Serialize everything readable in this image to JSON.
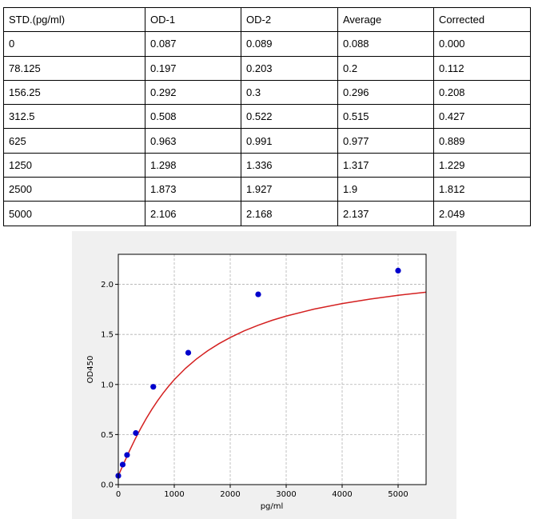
{
  "table": {
    "headers": [
      "STD.(pg/ml)",
      "OD-1",
      "OD-2",
      "Average",
      "Corrected"
    ],
    "rows": [
      [
        "0",
        "0.087",
        "0.089",
        "0.088",
        "0.000"
      ],
      [
        "78.125",
        "0.197",
        "0.203",
        "0.2",
        "0.112"
      ],
      [
        "156.25",
        "0.292",
        "0.3",
        "0.296",
        "0.208"
      ],
      [
        "312.5",
        "0.508",
        "0.522",
        "0.515",
        "0.427"
      ],
      [
        "625",
        "0.963",
        "0.991",
        "0.977",
        "0.889"
      ],
      [
        "1250",
        "1.298",
        "1.336",
        "1.317",
        "1.229"
      ],
      [
        "2500",
        "1.873",
        "1.927",
        "1.9",
        "1.812"
      ],
      [
        "5000",
        "2.106",
        "2.168",
        "2.137",
        "2.049"
      ]
    ]
  },
  "chart_data": {
    "type": "scatter",
    "title": "",
    "xlabel": "pg/ml",
    "ylabel": "OD450",
    "xlim": [
      0,
      5500
    ],
    "ylim": [
      0,
      2.3
    ],
    "x_ticks": [
      0,
      1000,
      2000,
      3000,
      4000,
      5000
    ],
    "x_tick_labels": [
      "0",
      "1000",
      "2000",
      "3000",
      "4000",
      "5000"
    ],
    "y_ticks": [
      0.0,
      0.5,
      1.0,
      1.5,
      2.0
    ],
    "y_tick_labels": [
      "0.0",
      "0.5",
      "1.0",
      "1.5",
      "2.0"
    ],
    "grid": true,
    "points": {
      "x": [
        0,
        78.125,
        156.25,
        312.5,
        625,
        1250,
        2500,
        5000
      ],
      "y": [
        0.088,
        0.2,
        0.296,
        0.515,
        0.977,
        1.317,
        1.9,
        2.137
      ],
      "color": "#0000cc"
    },
    "fit_curve": {
      "x": [
        0,
        50,
        100,
        200,
        300,
        400,
        500,
        600,
        700,
        800,
        900,
        1000,
        1200,
        1400,
        1600,
        1800,
        2000,
        2250,
        2500,
        2750,
        3000,
        3500,
        4000,
        4500,
        5000,
        5500
      ],
      "y": [
        0.088,
        0.152,
        0.215,
        0.338,
        0.454,
        0.561,
        0.661,
        0.752,
        0.836,
        0.913,
        0.983,
        1.048,
        1.161,
        1.256,
        1.338,
        1.408,
        1.469,
        1.536,
        1.592,
        1.641,
        1.683,
        1.753,
        1.808,
        1.853,
        1.891,
        1.922
      ],
      "color": "#d42020"
    }
  }
}
